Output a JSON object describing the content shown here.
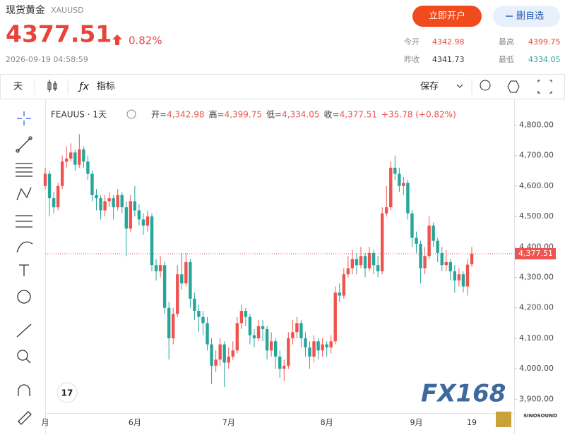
{
  "header": {
    "title": "现货黄金",
    "symbol": "XAUUSD",
    "price": "4377.51",
    "change": "0.82%",
    "time": "2026-09-19 04:58:59",
    "open_account": "立即开户",
    "remove_watchlist": "删自选",
    "stats": [
      {
        "label": "今开",
        "value": "4342.98"
      },
      {
        "label": "最高",
        "value": "4399.75"
      },
      {
        "label": "昨收",
        "value": "4341.73"
      },
      {
        "label": "最低",
        "value": "4334.05"
      }
    ]
  },
  "toolbar": {
    "interval": "天",
    "indicators": "指标",
    "save": "保存"
  },
  "chart_data": {
    "type": "candlestick",
    "legend": {
      "symbol": "FEAUUS · 1天",
      "items": [
        {
          "label": "开=",
          "value": "4,342.98"
        },
        {
          "label": "高=",
          "value": "4,399.75"
        },
        {
          "label": "低=",
          "value": "4,334.05"
        },
        {
          "label": "收=",
          "value": "4,377.51"
        }
      ],
      "change": "+35.78 (+0.82%)"
    },
    "categories": [
      "月",
      null,
      null,
      null,
      null,
      null,
      null,
      null,
      null,
      null,
      null,
      null,
      null,
      null,
      null,
      null,
      null,
      null,
      null,
      null,
      null,
      "6月",
      null,
      null,
      null,
      null,
      null,
      null,
      null,
      null,
      null,
      null,
      null,
      null,
      null,
      null,
      null,
      null,
      null,
      null,
      null,
      null,
      null,
      "7月",
      null,
      null,
      null,
      null,
      null,
      null,
      null,
      null,
      null,
      null,
      null,
      null,
      null,
      null,
      null,
      null,
      null,
      null,
      null,
      null,
      null,
      null,
      "8月",
      null,
      null,
      null,
      null,
      null,
      null,
      null,
      null,
      null,
      null,
      null,
      null,
      null,
      null,
      null,
      null,
      null,
      null,
      null,
      null,
      "9月",
      null,
      null,
      null,
      null,
      null,
      null,
      null,
      null,
      null,
      null,
      null,
      null,
      "19"
    ],
    "open": [
      4600,
      4640,
      4560,
      4530,
      4600,
      4680,
      4690,
      4710,
      4670,
      4720,
      4680,
      4640,
      4570,
      4560,
      4520,
      4550,
      4560,
      4530,
      4570,
      4530,
      4460,
      4550,
      4520,
      4490,
      4470,
      4500,
      4340,
      4320,
      4340,
      4200,
      4100,
      4180,
      4310,
      4280,
      4350,
      4230,
      4190,
      4170,
      4150,
      4080,
      4010,
      4030,
      4080,
      4020,
      4040,
      4060,
      4150,
      4190,
      4170,
      4110,
      4100,
      4140,
      4130,
      4060,
      4090,
      4040,
      4000,
      4010,
      4100,
      4120,
      4150,
      4100,
      4070,
      4040,
      4090,
      4060,
      4080,
      4070,
      4090,
      4250,
      4240,
      4310,
      4330,
      4360,
      4340,
      4370,
      4330,
      4380,
      4340,
      4320,
      4510,
      4530,
      4660,
      4640,
      4600,
      4610,
      4510,
      4430,
      4410,
      4330,
      4370,
      4470,
      4420,
      4380,
      4340,
      4350,
      4320,
      4290,
      4310,
      4270,
      4342.98
    ],
    "high": [
      4660,
      4650,
      4580,
      4610,
      4700,
      4730,
      4740,
      4720,
      4770,
      4730,
      4700,
      4650,
      4590,
      4570,
      4570,
      4580,
      4570,
      4590,
      4580,
      4550,
      4570,
      4600,
      4540,
      4510,
      4520,
      4510,
      4360,
      4370,
      4350,
      4220,
      4200,
      4340,
      4380,
      4380,
      4360,
      4250,
      4210,
      4190,
      4170,
      4100,
      4060,
      4100,
      4090,
      4070,
      4090,
      4170,
      4210,
      4200,
      4180,
      4130,
      4160,
      4160,
      4140,
      4120,
      4100,
      4060,
      4030,
      4120,
      4160,
      4170,
      4160,
      4120,
      4090,
      4110,
      4100,
      4100,
      4090,
      4110,
      4270,
      4280,
      4330,
      4370,
      4390,
      4380,
      4400,
      4380,
      4400,
      4390,
      4370,
      4530,
      4600,
      4680,
      4700,
      4660,
      4630,
      4620,
      4520,
      4450,
      4420,
      4400,
      4500,
      4480,
      4430,
      4400,
      4390,
      4360,
      4340,
      4330,
      4320,
      4360,
      4399.75
    ],
    "low": [
      4590,
      4500,
      4510,
      4520,
      4590,
      4660,
      4680,
      4650,
      4660,
      4660,
      4620,
      4550,
      4520,
      4490,
      4500,
      4530,
      4490,
      4520,
      4510,
      4370,
      4450,
      4500,
      4470,
      4440,
      4450,
      4320,
      4290,
      4300,
      4180,
      4030,
      4080,
      4170,
      4260,
      4270,
      4200,
      4160,
      4120,
      4110,
      4060,
      3950,
      3990,
      4010,
      3940,
      4000,
      4030,
      4050,
      4130,
      4140,
      4080,
      4070,
      4090,
      4090,
      4030,
      4040,
      4000,
      3970,
      3960,
      4000,
      4080,
      4100,
      4070,
      4040,
      4000,
      4020,
      4030,
      4040,
      4040,
      4050,
      4080,
      4220,
      4230,
      4300,
      4310,
      4310,
      4330,
      4300,
      4320,
      4310,
      4300,
      4310,
      4500,
      4520,
      4620,
      4580,
      4570,
      4490,
      4400,
      4380,
      4280,
      4310,
      4360,
      4400,
      4350,
      4320,
      4320,
      4290,
      4250,
      4270,
      4250,
      4240,
      4334.05
    ],
    "close": [
      4640,
      4560,
      4530,
      4600,
      4680,
      4690,
      4710,
      4670,
      4720,
      4680,
      4640,
      4570,
      4560,
      4520,
      4550,
      4560,
      4530,
      4570,
      4530,
      4460,
      4550,
      4520,
      4490,
      4470,
      4500,
      4340,
      4320,
      4340,
      4200,
      4100,
      4180,
      4310,
      4280,
      4350,
      4230,
      4190,
      4170,
      4150,
      4080,
      4010,
      4030,
      4080,
      4020,
      4040,
      4060,
      4150,
      4190,
      4170,
      4110,
      4100,
      4140,
      4130,
      4060,
      4090,
      4040,
      4000,
      4010,
      4100,
      4120,
      4150,
      4100,
      4070,
      4040,
      4090,
      4060,
      4080,
      4070,
      4090,
      4250,
      4240,
      4310,
      4330,
      4360,
      4340,
      4370,
      4330,
      4380,
      4340,
      4320,
      4510,
      4530,
      4660,
      4640,
      4600,
      4610,
      4510,
      4430,
      4410,
      4330,
      4370,
      4470,
      4420,
      4380,
      4340,
      4350,
      4320,
      4290,
      4310,
      4270,
      4341.73,
      4377.51
    ],
    "up_color": "#ef5350",
    "down_color": "#26a69a",
    "ylim": [
      3850,
      4875
    ],
    "yticks": [
      {
        "value": 3900,
        "label": "3,900.00"
      },
      {
        "value": 4000,
        "label": "4,000.00"
      },
      {
        "value": 4100,
        "label": "4,100.00"
      },
      {
        "value": 4200,
        "label": "4,200.00"
      },
      {
        "value": 4300,
        "label": "4,300.00"
      },
      {
        "value": 4400,
        "label": "4,400.00"
      },
      {
        "value": 4500,
        "label": "4,500.00"
      },
      {
        "value": 4600,
        "label": "4,600.00"
      },
      {
        "value": 4700,
        "label": "4,700.00"
      },
      {
        "value": 4800,
        "label": "4,800.00"
      }
    ],
    "last_price": {
      "value": 4377.51,
      "label": "4,377.51"
    },
    "watermark": "FX168"
  },
  "brand": "SINOSOUND"
}
